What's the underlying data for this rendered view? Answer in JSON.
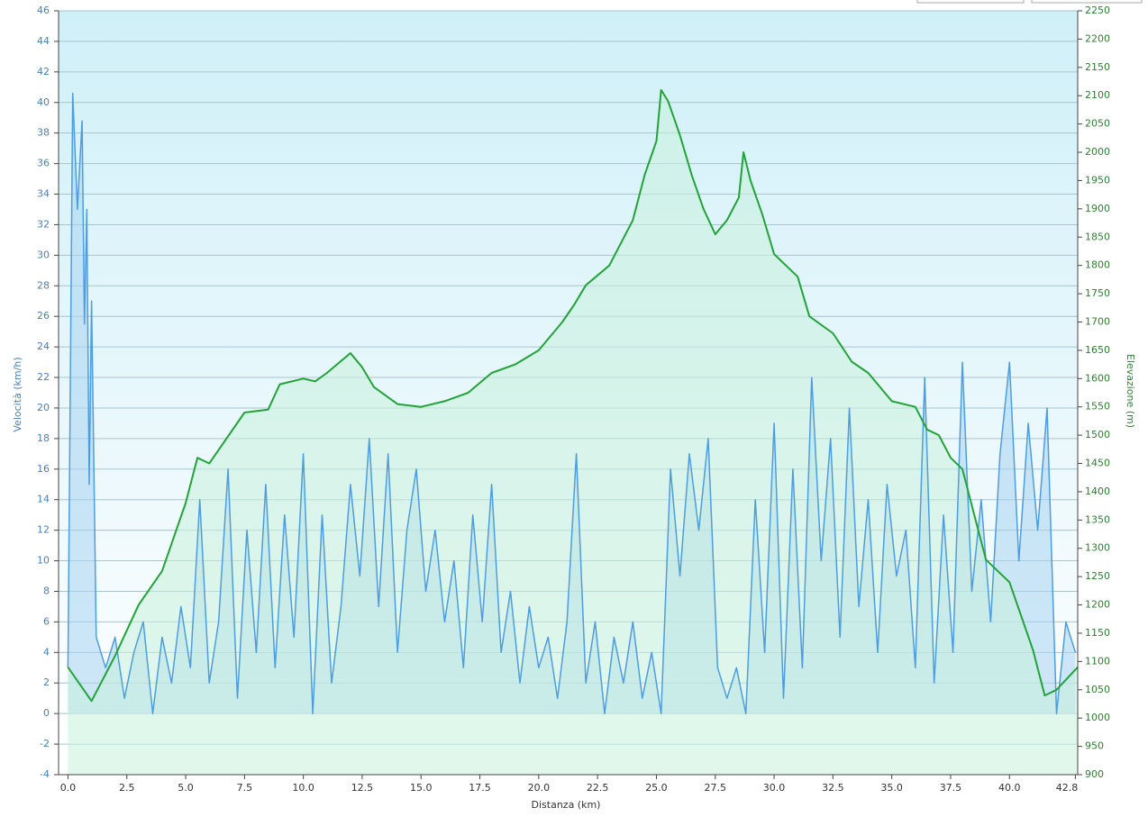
{
  "chart_data": {
    "type": "line",
    "xlabel": "Distanza  (km)",
    "ylabel": "Velocità (km/h)",
    "y2label": "Elevazione (m)",
    "xlim": [
      -0.4,
      42.9
    ],
    "xticks": [
      {
        "value": 0,
        "label": "0.0"
      },
      2.5,
      {
        "value": 5,
        "label": "5.0"
      },
      7.5,
      {
        "value": 10,
        "label": "10.0"
      },
      12.5,
      {
        "value": 15,
        "label": "15.0"
      },
      17.5,
      {
        "value": 20,
        "label": "20.0"
      },
      22.5,
      {
        "value": 25,
        "label": "25.0"
      },
      27.5,
      {
        "value": 30,
        "label": "30.0"
      },
      32.5,
      {
        "value": 35,
        "label": "35.0"
      },
      37.5,
      {
        "value": 40,
        "label": "40.0"
      },
      42.8
    ],
    "ylim": [
      -4,
      46
    ],
    "yticks": [
      -4,
      -2,
      0,
      2,
      4,
      6,
      8,
      10,
      12,
      14,
      16,
      18,
      20,
      22,
      24,
      26,
      28,
      30,
      32,
      34,
      36,
      38,
      40,
      42,
      44,
      46
    ],
    "y2lim": [
      900,
      2250
    ],
    "y2ticks": [
      900,
      950,
      1000,
      1050,
      1100,
      1150,
      1200,
      1250,
      1300,
      1350,
      1400,
      1450,
      1500,
      1550,
      1600,
      1650,
      1700,
      1750,
      1800,
      1850,
      1900,
      1950,
      2000,
      2050,
      2100,
      2150,
      2200,
      2250
    ],
    "grid": true,
    "series": [
      {
        "color": "#4d9de0",
        "fill": "#a8d4f0",
        "x": [
          0,
          0.2,
          0.4,
          0.6,
          0.7,
          0.8,
          0.9,
          1.0,
          1.2,
          1.6,
          2.0,
          2.4,
          2.8,
          3.2,
          3.6,
          4.0,
          4.4,
          4.8,
          5.2,
          5.6,
          6.0,
          6.4,
          6.8,
          7.2,
          7.6,
          8.0,
          8.4,
          8.8,
          9.2,
          9.6,
          10.0,
          10.4,
          10.8,
          11.2,
          11.6,
          12.0,
          12.4,
          12.8,
          13.2,
          13.6,
          14.0,
          14.4,
          14.8,
          15.2,
          15.6,
          16.0,
          16.4,
          16.8,
          17.2,
          17.6,
          18.0,
          18.4,
          18.8,
          19.2,
          19.6,
          20.0,
          20.4,
          20.8,
          21.2,
          21.6,
          22.0,
          22.4,
          22.8,
          23.2,
          23.6,
          24.0,
          24.4,
          24.8,
          25.2,
          25.6,
          26.0,
          26.4,
          26.8,
          27.2,
          27.6,
          28.0,
          28.4,
          28.8,
          29.2,
          29.6,
          30.0,
          30.4,
          30.8,
          31.2,
          31.6,
          32.0,
          32.4,
          32.8,
          33.2,
          33.6,
          34.0,
          34.4,
          34.8,
          35.2,
          35.6,
          36.0,
          36.4,
          36.8,
          37.2,
          37.6,
          38.0,
          38.4,
          38.8,
          39.2,
          39.6,
          40.0,
          40.4,
          40.8,
          41.2,
          41.6,
          42.0,
          42.4,
          42.8
        ],
        "values": [
          3,
          40.6,
          33,
          38.8,
          25.5,
          33,
          15,
          27,
          5,
          3,
          5,
          1,
          4,
          6,
          0,
          5,
          2,
          7,
          3,
          14,
          2,
          6,
          16,
          1,
          12,
          4,
          15,
          3,
          13,
          5,
          17,
          0,
          13,
          2,
          7,
          15,
          9,
          18,
          7,
          17,
          4,
          12,
          16,
          8,
          12,
          6,
          10,
          3,
          13,
          6,
          15,
          4,
          8,
          2,
          7,
          3,
          5,
          1,
          6,
          17,
          2,
          6,
          0,
          5,
          2,
          6,
          1,
          4,
          0,
          16,
          9,
          17,
          12,
          18,
          3,
          1,
          3,
          0,
          14,
          4,
          19,
          1,
          16,
          3,
          22,
          10,
          18,
          5,
          20,
          7,
          14,
          4,
          15,
          9,
          12,
          3,
          22,
          2,
          13,
          4,
          23,
          8,
          14,
          6,
          17,
          23,
          10,
          19,
          12,
          20,
          0,
          6,
          4
        ]
      },
      {
        "color": "#22a33a",
        "fill": "#c8f0dc",
        "axis": "y2",
        "x": [
          0,
          1,
          2,
          3,
          4,
          5,
          5.5,
          6,
          7,
          7.5,
          8.5,
          9,
          10,
          10.5,
          11,
          12,
          12.5,
          13,
          14,
          15,
          16,
          17,
          18,
          19,
          20,
          21,
          21.5,
          22,
          23,
          24,
          24.5,
          25,
          25.2,
          25.5,
          26,
          26.5,
          27,
          27.5,
          28,
          28.5,
          28.7,
          29,
          29.5,
          30,
          31,
          31.5,
          32.5,
          33.3,
          34,
          35,
          36,
          36.5,
          37,
          37.5,
          38,
          39,
          40,
          41,
          41.5,
          42,
          42.9
        ],
        "values": [
          1090,
          1030,
          1110,
          1200,
          1260,
          1380,
          1460,
          1450,
          1510,
          1540,
          1545,
          1590,
          1600,
          1595,
          1610,
          1645,
          1620,
          1585,
          1555,
          1550,
          1560,
          1575,
          1610,
          1625,
          1650,
          1700,
          1730,
          1765,
          1800,
          1880,
          1960,
          2020,
          2110,
          2090,
          2030,
          1960,
          1900,
          1855,
          1880,
          1920,
          2000,
          1950,
          1890,
          1820,
          1780,
          1710,
          1680,
          1630,
          1610,
          1560,
          1550,
          1510,
          1500,
          1460,
          1440,
          1280,
          1240,
          1120,
          1040,
          1050,
          1090
        ]
      }
    ]
  }
}
